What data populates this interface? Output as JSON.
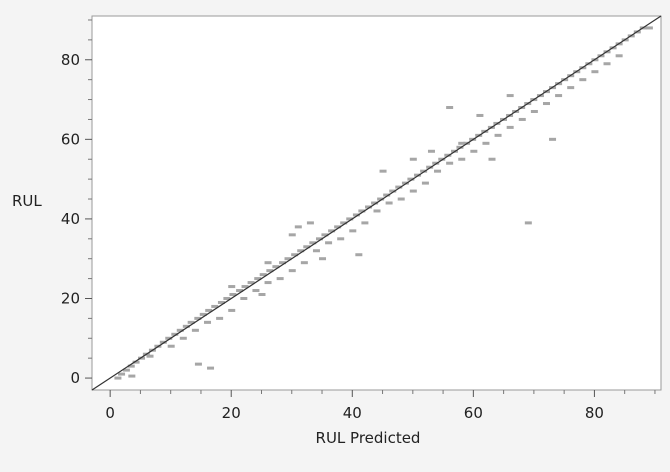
{
  "chart_data": {
    "type": "scatter",
    "xlabel": "RUL Predicted",
    "ylabel": "RUL",
    "xlim": [
      -3,
      91
    ],
    "ylim": [
      -3,
      91
    ],
    "xticks": [
      0,
      20,
      40,
      60,
      80
    ],
    "yticks": [
      0,
      20,
      40,
      60,
      80
    ],
    "grid": false,
    "reference_line": {
      "slope": 1,
      "intercept": 0
    },
    "colors": {
      "points": "#a6a6a6",
      "line": "#333333",
      "frame": "#9a9a9a",
      "background": "#ffffff"
    },
    "points": [
      [
        1.2,
        0
      ],
      [
        1.8,
        1
      ],
      [
        2.6,
        2
      ],
      [
        3.4,
        3
      ],
      [
        4.2,
        4
      ],
      [
        5.1,
        5
      ],
      [
        5.9,
        6
      ],
      [
        6.9,
        7
      ],
      [
        7.8,
        8
      ],
      [
        8.7,
        9
      ],
      [
        9.6,
        10
      ],
      [
        10.6,
        11
      ],
      [
        11.5,
        12
      ],
      [
        12.5,
        13
      ],
      [
        13.3,
        14
      ],
      [
        14.4,
        15
      ],
      [
        15.3,
        16
      ],
      [
        16.2,
        17
      ],
      [
        17.2,
        18
      ],
      [
        18.3,
        19
      ],
      [
        19.2,
        20
      ],
      [
        20.2,
        21
      ],
      [
        21.3,
        22
      ],
      [
        22.2,
        23
      ],
      [
        23.2,
        24
      ],
      [
        24.3,
        25
      ],
      [
        25.2,
        26
      ],
      [
        26.3,
        27
      ],
      [
        27.3,
        28
      ],
      [
        28.4,
        29
      ],
      [
        29.3,
        30
      ],
      [
        30.4,
        31
      ],
      [
        31.4,
        32
      ],
      [
        32.4,
        33
      ],
      [
        33.4,
        34
      ],
      [
        34.5,
        35
      ],
      [
        35.4,
        36
      ],
      [
        36.5,
        37
      ],
      [
        37.5,
        38
      ],
      [
        38.5,
        39
      ],
      [
        39.5,
        40
      ],
      [
        40.6,
        41
      ],
      [
        41.5,
        42
      ],
      [
        42.6,
        43
      ],
      [
        43.6,
        44
      ],
      [
        44.6,
        45
      ],
      [
        45.6,
        46
      ],
      [
        46.6,
        47
      ],
      [
        47.6,
        48
      ],
      [
        48.7,
        49
      ],
      [
        49.6,
        50
      ],
      [
        50.7,
        51
      ],
      [
        51.7,
        52
      ],
      [
        52.7,
        53
      ],
      [
        53.7,
        54
      ],
      [
        54.7,
        55
      ],
      [
        55.7,
        56
      ],
      [
        56.8,
        57
      ],
      [
        57.7,
        58
      ],
      [
        58.8,
        59
      ],
      [
        59.8,
        60
      ],
      [
        60.8,
        61
      ],
      [
        61.8,
        62
      ],
      [
        62.9,
        63
      ],
      [
        63.8,
        64
      ],
      [
        64.9,
        65
      ],
      [
        65.9,
        66
      ],
      [
        66.9,
        67
      ],
      [
        67.9,
        68
      ],
      [
        68.9,
        69
      ],
      [
        69.9,
        70
      ],
      [
        71,
        71
      ],
      [
        72,
        72
      ],
      [
        73,
        73
      ],
      [
        74,
        74
      ],
      [
        75,
        75
      ],
      [
        76,
        76
      ],
      [
        77,
        77
      ],
      [
        78,
        78
      ],
      [
        79,
        79
      ],
      [
        80,
        80
      ],
      [
        81,
        81
      ],
      [
        82,
        82
      ],
      [
        83,
        83
      ],
      [
        84,
        84
      ],
      [
        85,
        85
      ],
      [
        86,
        86
      ],
      [
        87,
        87
      ],
      [
        88,
        88
      ],
      [
        89,
        88
      ],
      [
        3.5,
        0.5
      ],
      [
        6.5,
        5.5
      ],
      [
        10,
        8
      ],
      [
        12,
        10
      ],
      [
        14,
        12
      ],
      [
        16,
        14
      ],
      [
        18,
        15
      ],
      [
        20,
        17
      ],
      [
        22,
        20
      ],
      [
        24,
        22
      ],
      [
        26,
        24
      ],
      [
        28,
        25
      ],
      [
        30,
        27
      ],
      [
        32,
        29
      ],
      [
        34,
        32
      ],
      [
        36,
        34
      ],
      [
        38,
        35
      ],
      [
        40,
        37
      ],
      [
        42,
        39
      ],
      [
        44,
        42
      ],
      [
        46,
        44
      ],
      [
        48,
        45
      ],
      [
        50,
        47
      ],
      [
        52,
        49
      ],
      [
        54,
        52
      ],
      [
        56,
        54
      ],
      [
        58,
        55
      ],
      [
        60,
        57
      ],
      [
        62,
        59
      ],
      [
        64,
        61
      ],
      [
        66,
        63
      ],
      [
        68,
        65
      ],
      [
        70,
        67
      ],
      [
        72,
        69
      ],
      [
        74,
        71
      ],
      [
        76,
        73
      ],
      [
        78,
        75
      ],
      [
        80,
        77
      ],
      [
        82,
        79
      ],
      [
        84,
        81
      ],
      [
        14.5,
        3.5
      ],
      [
        16.5,
        2.5
      ],
      [
        41,
        31
      ],
      [
        56,
        68
      ],
      [
        73,
        60
      ],
      [
        69,
        39
      ],
      [
        58,
        59
      ],
      [
        31,
        38
      ],
      [
        26,
        29
      ],
      [
        30,
        36
      ],
      [
        45,
        52
      ],
      [
        50,
        55
      ],
      [
        53,
        57
      ],
      [
        61,
        66
      ],
      [
        66,
        71
      ],
      [
        35,
        30
      ],
      [
        25,
        21
      ],
      [
        20,
        23
      ],
      [
        63,
        55
      ],
      [
        33,
        39
      ]
    ]
  }
}
